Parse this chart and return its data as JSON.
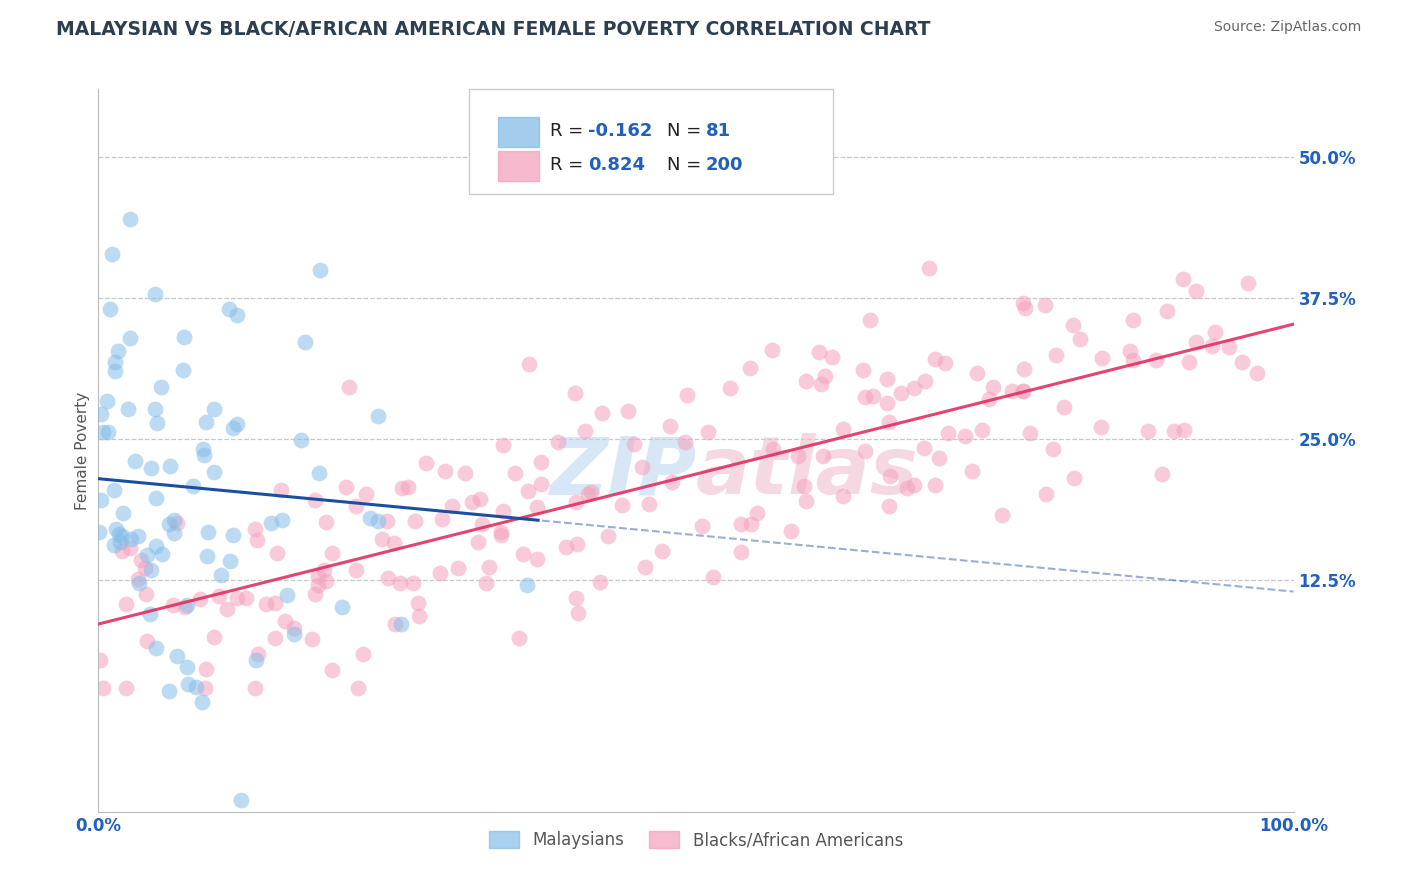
{
  "title": "MALAYSIAN VS BLACK/AFRICAN AMERICAN FEMALE POVERTY CORRELATION CHART",
  "source": "Source: ZipAtlas.com",
  "ylabel": "Female Poverty",
  "xlim": [
    0,
    1.0
  ],
  "ylim": [
    -0.08,
    0.56
  ],
  "yticks": [
    0.125,
    0.25,
    0.375,
    0.5
  ],
  "ytick_labels": [
    "12.5%",
    "25.0%",
    "37.5%",
    "50.0%"
  ],
  "xtick_labels": [
    "0.0%",
    "100.0%"
  ],
  "series1_label": "Malaysians",
  "series2_label": "Blacks/African Americans",
  "series1_color": "#85bce8",
  "series2_color": "#f4a0bc",
  "trendline1_color": "#1a4fa0",
  "trendline2_color": "#e03060",
  "R1": -0.162,
  "N1": 81,
  "R2": 0.824,
  "N2": 200,
  "watermark": "ZIPAtlas",
  "background_color": "#ffffff",
  "grid_color": "#c8c8c8",
  "title_color": "#2c3e50",
  "tick_label_color": "#2060c0",
  "legend_box_color": "#7ab0e0",
  "legend_pink_color": "#f4a0bc"
}
